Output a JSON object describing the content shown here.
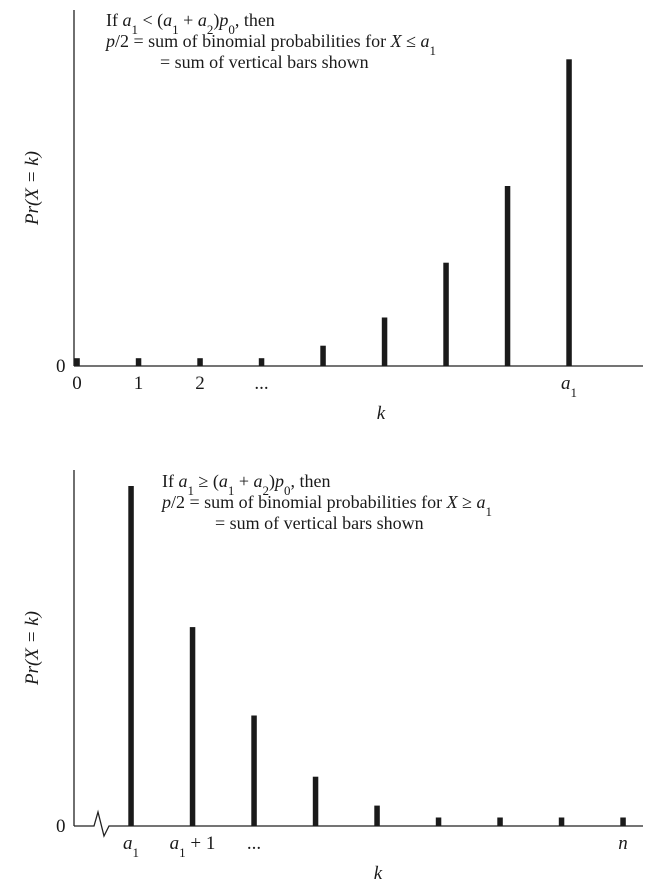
{
  "chart_data": [
    {
      "type": "bar",
      "panel": "top",
      "annotation": [
        {
          "parts": [
            "If ",
            {
              "i": "a"
            },
            {
              "sub": "1"
            },
            " < (",
            {
              "i": "a"
            },
            {
              "sub": "1"
            },
            " + ",
            {
              "i": "a"
            },
            {
              "sub": "2"
            },
            ")",
            {
              "i": "p"
            },
            {
              "sub": "0"
            },
            ", then"
          ]
        },
        {
          "parts": [
            {
              "i": "p"
            },
            "/2 = sum of binomial probabilities for ",
            {
              "i": "X"
            },
            " ≤ ",
            {
              "i": "a"
            },
            {
              "sub": "1"
            }
          ]
        },
        {
          "parts": [
            "= sum of vertical bars shown"
          ],
          "indent": true
        }
      ],
      "ylabel": "Pr(X = k)",
      "xlabel": "k",
      "y_zero_label": "0",
      "x_tick_labels": [
        {
          "pos": 0,
          "parts": [
            "0"
          ]
        },
        {
          "pos": 1,
          "parts": [
            "1"
          ]
        },
        {
          "pos": 2,
          "parts": [
            "2"
          ]
        },
        {
          "pos": 3,
          "parts": [
            "..."
          ]
        },
        {
          "pos": 8,
          "parts": [
            {
              "i": "a"
            },
            {
              "sub": "1"
            }
          ]
        }
      ],
      "x_positions": [
        0,
        1,
        2,
        3,
        4,
        5,
        6,
        7,
        8
      ],
      "values": [
        0.025,
        0.025,
        0.025,
        0.025,
        0.065,
        0.155,
        0.33,
        0.575,
        0.98
      ],
      "ylim": [
        0,
        1
      ]
    },
    {
      "type": "bar",
      "panel": "bottom",
      "annotation": [
        {
          "parts": [
            "If ",
            {
              "i": "a"
            },
            {
              "sub": "1"
            },
            " ≥ (",
            {
              "i": "a"
            },
            {
              "sub": "1"
            },
            " + ",
            {
              "i": "a"
            },
            {
              "sub": "2"
            },
            ")",
            {
              "i": "p"
            },
            {
              "sub": "0"
            },
            ", then"
          ]
        },
        {
          "parts": [
            {
              "i": "p"
            },
            "/2 = sum of binomial probabilities for ",
            {
              "i": "X"
            },
            " ≥ ",
            {
              "i": "a"
            },
            {
              "sub": "1"
            }
          ]
        },
        {
          "parts": [
            "= sum of vertical bars shown"
          ],
          "indent": true
        }
      ],
      "ylabel": "Pr(X = k)",
      "xlabel": "k",
      "y_zero_label": "0",
      "x_tick_labels": [
        {
          "pos": 0,
          "parts": [
            {
              "i": "a"
            },
            {
              "sub": "1"
            }
          ]
        },
        {
          "pos": 1,
          "parts": [
            {
              "i": "a"
            },
            {
              "sub": "1"
            },
            " + 1"
          ]
        },
        {
          "pos": 2,
          "parts": [
            "..."
          ]
        },
        {
          "pos": 8,
          "parts": [
            {
              "i": "n"
            }
          ]
        }
      ],
      "x_positions": [
        0,
        1,
        2,
        3,
        4,
        5,
        6,
        7,
        8
      ],
      "values": [
        1.0,
        0.585,
        0.325,
        0.145,
        0.06,
        0.025,
        0.025,
        0.025,
        0.025
      ],
      "ylim": [
        0,
        1
      ],
      "axis_break": true
    }
  ]
}
